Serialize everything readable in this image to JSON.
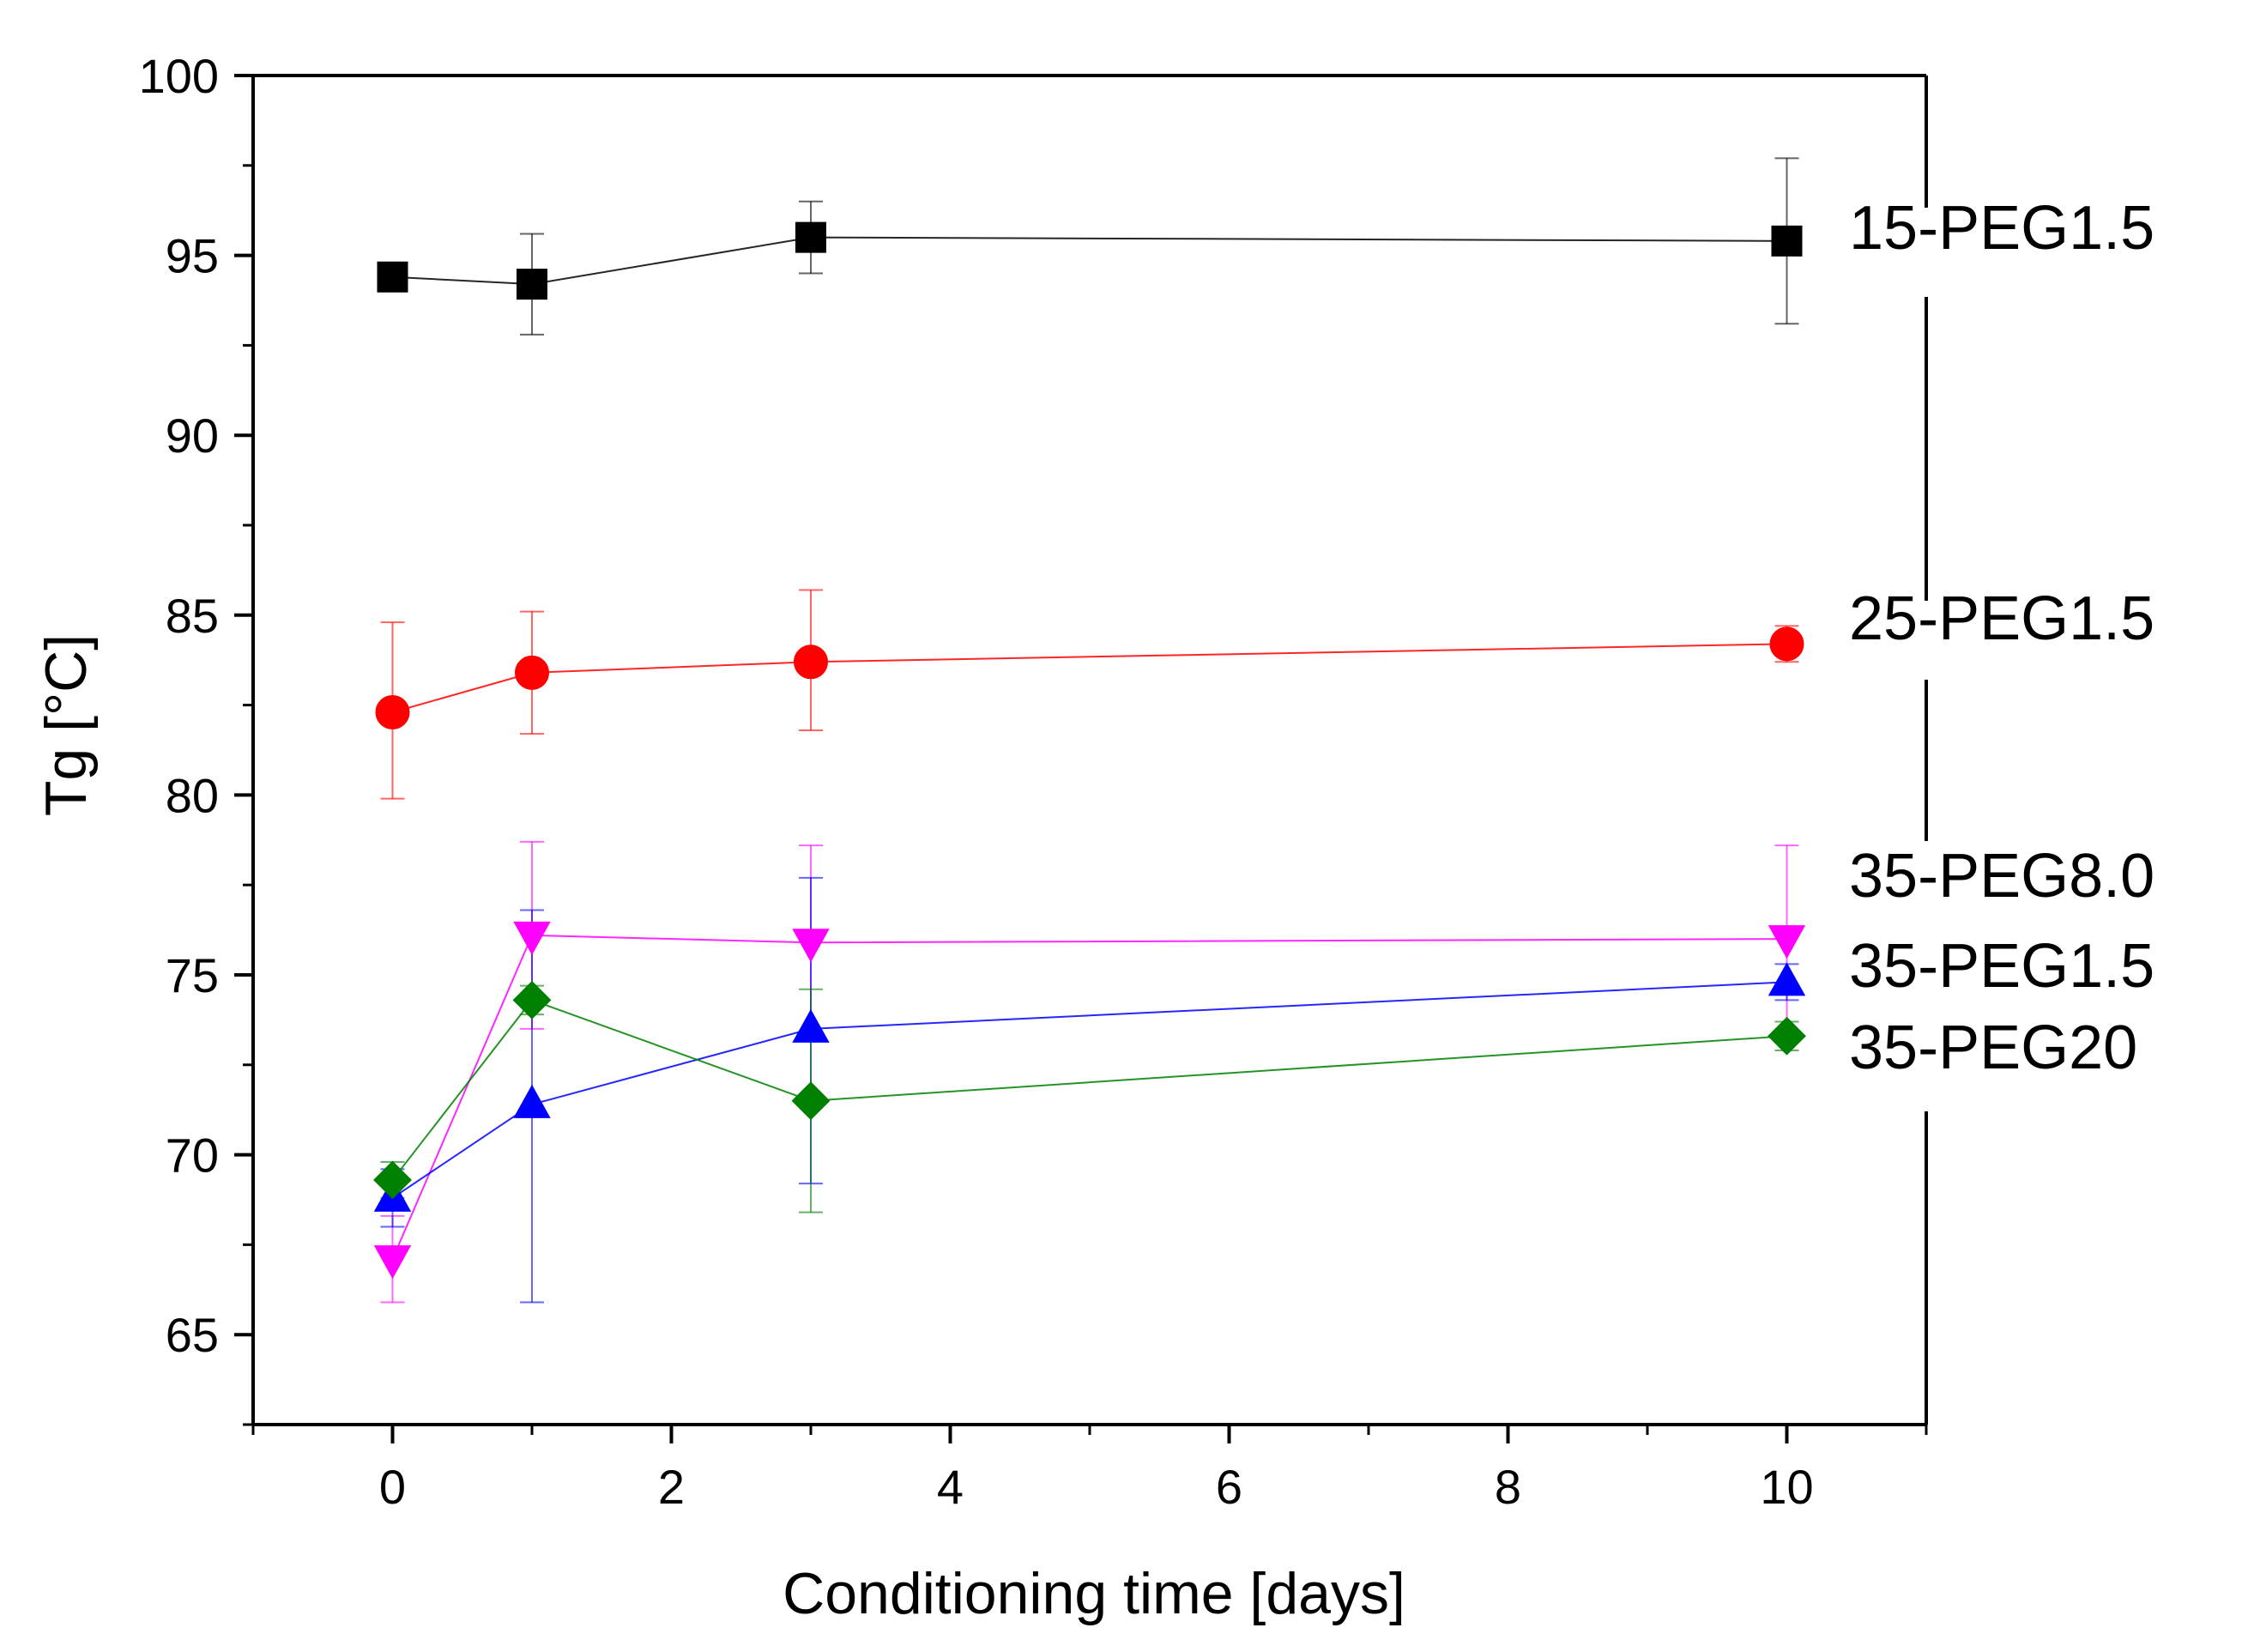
{
  "chart_data": {
    "type": "line",
    "title": "",
    "xlabel": "Conditioning time [days]",
    "ylabel": "Tg [°C]",
    "xlim": [
      -1,
      11
    ],
    "ylim": [
      62.5,
      100
    ],
    "xticks": [
      0,
      2,
      4,
      6,
      8,
      10
    ],
    "xtick_labels": [
      "0",
      "2",
      "4",
      "6",
      "8",
      "10"
    ],
    "yticks": [
      65,
      70,
      75,
      80,
      85,
      90,
      95,
      100
    ],
    "ytick_labels": [
      "65",
      "70",
      "75",
      "80",
      "85",
      "90",
      "95",
      "100"
    ],
    "grid": false,
    "legend": "direct labels at right",
    "x": [
      0,
      1,
      3,
      10
    ],
    "series": [
      {
        "name": "15-PEG1.5",
        "color": "#000000",
        "marker": "square",
        "values": [
          94.4,
          94.2,
          95.5,
          95.4
        ],
        "err_low": [
          94.4,
          92.8,
          94.5,
          93.1
        ],
        "err_high": [
          94.4,
          95.6,
          96.5,
          97.7
        ]
      },
      {
        "name": "25-PEG1.5",
        "color": "#ff0000",
        "marker": "circle",
        "values": [
          82.3,
          83.4,
          83.7,
          84.2
        ],
        "err_low": [
          79.9,
          81.7,
          81.8,
          83.7
        ],
        "err_high": [
          84.8,
          85.1,
          85.7,
          84.7
        ]
      },
      {
        "name": "35-PEG8.0",
        "color": "#ff00ff",
        "marker": "triangle-down",
        "values": [
          67.1,
          76.1,
          75.9,
          76.0
        ],
        "err_low": [
          65.9,
          73.5,
          73.2,
          73.4
        ],
        "err_high": [
          68.3,
          78.7,
          78.6,
          78.6
        ]
      },
      {
        "name": "35-PEG1.5",
        "color": "#0000ff",
        "marker": "triangle-up",
        "values": [
          68.8,
          71.4,
          73.5,
          74.8
        ],
        "err_low": [
          68.0,
          65.9,
          69.2,
          74.3
        ],
        "err_high": [
          69.6,
          76.8,
          77.7,
          75.3
        ]
      },
      {
        "name": "35-PEG20",
        "color": "#008000",
        "marker": "diamond",
        "values": [
          69.3,
          74.3,
          71.5,
          73.3
        ],
        "err_low": [
          68.8,
          73.9,
          68.4,
          72.9
        ],
        "err_high": [
          69.8,
          74.7,
          74.6,
          73.7
        ]
      }
    ]
  }
}
